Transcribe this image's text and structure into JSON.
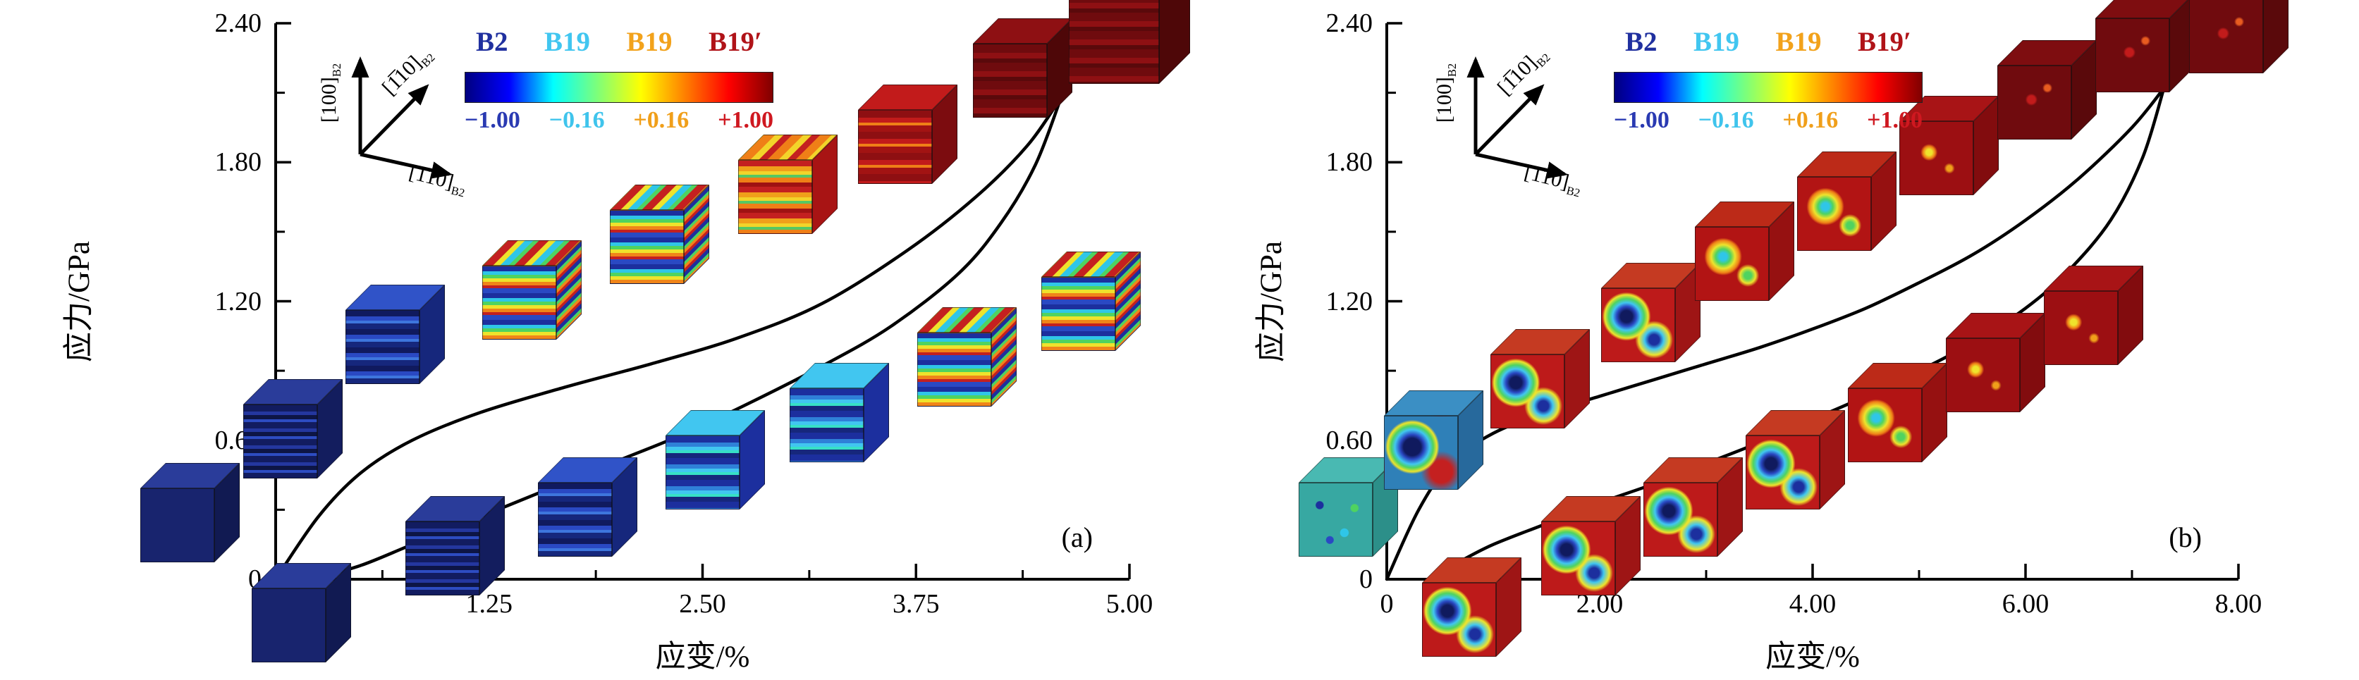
{
  "figure": {
    "background": "#ffffff"
  },
  "chart_data": [
    {
      "type": "line",
      "panel_label": "(a)",
      "xlabel": "应变/%",
      "ylabel": "应力/GPa",
      "xlim": [
        0,
        5
      ],
      "ylim": [
        0,
        2.4
      ],
      "grid": false,
      "x_ticks": [
        {
          "v": 0,
          "t": "0"
        },
        {
          "v": 1.25,
          "t": "1.25"
        },
        {
          "v": 2.5,
          "t": "2.50"
        },
        {
          "v": 3.75,
          "t": "3.75"
        },
        {
          "v": 5,
          "t": "5.00"
        }
      ],
      "y_ticks": [
        {
          "v": 0,
          "t": "0"
        },
        {
          "v": 0.6,
          "t": "0.60"
        },
        {
          "v": 1.2,
          "t": "1.20"
        },
        {
          "v": 1.8,
          "t": "1.80"
        },
        {
          "v": 2.4,
          "t": "2.40"
        }
      ],
      "curve_color": "#000000",
      "series": [
        {
          "name": "loading",
          "points": [
            [
              0,
              0
            ],
            [
              0.25,
              0.27
            ],
            [
              0.5,
              0.46
            ],
            [
              0.8,
              0.6
            ],
            [
              1.2,
              0.72
            ],
            [
              1.7,
              0.83
            ],
            [
              2.2,
              0.93
            ],
            [
              2.7,
              1.04
            ],
            [
              3.2,
              1.19
            ],
            [
              3.7,
              1.42
            ],
            [
              4.1,
              1.65
            ],
            [
              4.4,
              1.87
            ],
            [
              4.6,
              2.08
            ]
          ]
        },
        {
          "name": "unloading",
          "points": [
            [
              4.6,
              2.08
            ],
            [
              4.45,
              1.79
            ],
            [
              4.25,
              1.54
            ],
            [
              4.0,
              1.32
            ],
            [
              3.6,
              1.09
            ],
            [
              3.2,
              0.92
            ],
            [
              2.8,
              0.77
            ],
            [
              2.4,
              0.63
            ],
            [
              2.0,
              0.51
            ],
            [
              1.6,
              0.39
            ],
            [
              1.2,
              0.27
            ],
            [
              0.8,
              0.15
            ],
            [
              0.5,
              0.06
            ],
            [
              0.25,
              0.01
            ],
            [
              0.12,
              0
            ]
          ]
        }
      ],
      "legend": {
        "entries": [
          {
            "label": "B2",
            "color": "#20309f"
          },
          {
            "label": "B19",
            "color": "#41c6f0"
          },
          {
            "label": "B19",
            "color": "#f2a21b"
          },
          {
            "label": "B19′",
            "color": "#b01318"
          }
        ],
        "colorbar": {
          "gradient": [
            "#000080",
            "#0000ff",
            "#00ffff",
            "#7dff7a",
            "#ffff00",
            "#ff8000",
            "#ff0000",
            "#800000"
          ],
          "tick_labels": [
            {
              "text": "−1.00",
              "color": "#2a3ab2"
            },
            {
              "text": "−0.16",
              "color": "#3fc4ec"
            },
            {
              "text": "+0.16",
              "color": "#f09f1a"
            },
            {
              "text": "+1.00",
              "color": "#cf1820"
            }
          ]
        }
      },
      "orientation": {
        "axes": [
          {
            "label": "[100]",
            "sub": "B2"
          },
          {
            "label": "[1̅10]",
            "sub": "B2"
          },
          {
            "label": "[110]",
            "sub": "B2"
          }
        ]
      },
      "insets": [
        {
          "fx": -0.1,
          "fy": 0.12,
          "pal": "b2-solid"
        },
        {
          "fx": 0.03,
          "fy": -0.06,
          "pal": "b2-solid"
        },
        {
          "fx": 0.02,
          "fy": 0.27,
          "pal": "b2-stripes"
        },
        {
          "fx": 0.14,
          "fy": 0.44,
          "pal": "blue-stripes"
        },
        {
          "fx": 0.3,
          "fy": 0.52,
          "pal": "mixed"
        },
        {
          "fx": 0.45,
          "fy": 0.62,
          "pal": "mixed"
        },
        {
          "fx": 0.6,
          "fy": 0.71,
          "pal": "warm"
        },
        {
          "fx": 0.74,
          "fy": 0.8,
          "pal": "red-stripes"
        },
        {
          "fx": 0.875,
          "fy": 0.92,
          "pal": "dark-red"
        },
        {
          "fx": 1.0,
          "fy": 1.0,
          "pal": "dark-red",
          "scale": 1.22
        },
        {
          "fx": 0.21,
          "fy": 0.06,
          "pal": "b2-stripes"
        },
        {
          "fx": 0.365,
          "fy": 0.13,
          "pal": "blue-stripes"
        },
        {
          "fx": 0.515,
          "fy": 0.215,
          "pal": "blue-cyan"
        },
        {
          "fx": 0.66,
          "fy": 0.3,
          "pal": "blue-cyan"
        },
        {
          "fx": 0.81,
          "fy": 0.4,
          "pal": "mixed"
        },
        {
          "fx": 0.955,
          "fy": 0.5,
          "pal": "mixed"
        }
      ]
    },
    {
      "type": "line",
      "panel_label": "(b)",
      "xlabel": "应变/%",
      "ylabel": "应力/GPa",
      "xlim": [
        0,
        8
      ],
      "ylim": [
        0,
        2.4
      ],
      "grid": false,
      "x_ticks": [
        {
          "v": 0,
          "t": "0"
        },
        {
          "v": 2,
          "t": "2.00"
        },
        {
          "v": 4,
          "t": "4.00"
        },
        {
          "v": 6,
          "t": "6.00"
        },
        {
          "v": 8,
          "t": "8.00"
        }
      ],
      "y_ticks": [
        {
          "v": 0,
          "t": "0"
        },
        {
          "v": 0.6,
          "t": "0.60"
        },
        {
          "v": 1.2,
          "t": "1.20"
        },
        {
          "v": 1.8,
          "t": "1.80"
        },
        {
          "v": 2.4,
          "t": "2.40"
        }
      ],
      "curve_color": "#000000",
      "series": [
        {
          "name": "loading",
          "points": [
            [
              0,
              0
            ],
            [
              0.3,
              0.3
            ],
            [
              0.6,
              0.5
            ],
            [
              1.0,
              0.63
            ],
            [
              1.5,
              0.72
            ],
            [
              2.0,
              0.79
            ],
            [
              2.5,
              0.86
            ],
            [
              3.0,
              0.93
            ],
            [
              3.5,
              1.0
            ],
            [
              4.0,
              1.08
            ],
            [
              4.5,
              1.17
            ],
            [
              5.0,
              1.28
            ],
            [
              5.5,
              1.4
            ],
            [
              6.0,
              1.55
            ],
            [
              6.5,
              1.73
            ],
            [
              7.0,
              1.95
            ],
            [
              7.3,
              2.12
            ]
          ]
        },
        {
          "name": "unloading",
          "points": [
            [
              7.3,
              2.12
            ],
            [
              7.1,
              1.82
            ],
            [
              6.8,
              1.55
            ],
            [
              6.4,
              1.33
            ],
            [
              6.0,
              1.17
            ],
            [
              5.5,
              1.02
            ],
            [
              5.0,
              0.9
            ],
            [
              4.5,
              0.79
            ],
            [
              4.0,
              0.69
            ],
            [
              3.5,
              0.59
            ],
            [
              3.0,
              0.5
            ],
            [
              2.5,
              0.41
            ],
            [
              2.0,
              0.33
            ],
            [
              1.5,
              0.24
            ],
            [
              1.0,
              0.15
            ],
            [
              0.7,
              0.08
            ],
            [
              0.5,
              0.03
            ],
            [
              0.4,
              0
            ]
          ]
        }
      ],
      "legend": {
        "entries": [
          {
            "label": "B2",
            "color": "#20309f"
          },
          {
            "label": "B19",
            "color": "#41c6f0"
          },
          {
            "label": "B19",
            "color": "#f2a21b"
          },
          {
            "label": "B19′",
            "color": "#b01318"
          }
        ],
        "colorbar": {
          "gradient": [
            "#000080",
            "#0000ff",
            "#00ffff",
            "#7dff7a",
            "#ffff00",
            "#ff8000",
            "#ff0000",
            "#800000"
          ],
          "tick_labels": [
            {
              "text": "−1.00",
              "color": "#2a3ab2"
            },
            {
              "text": "−0.16",
              "color": "#3fc4ec"
            },
            {
              "text": "+0.16",
              "color": "#f09f1a"
            },
            {
              "text": "+1.00",
              "color": "#cf1820"
            }
          ]
        }
      },
      "orientation": {
        "axes": [
          {
            "label": "[100]",
            "sub": "B2"
          },
          {
            "label": "[1̅10]",
            "sub": "B2"
          },
          {
            "label": "[110]",
            "sub": "B2"
          }
        ]
      },
      "insets": [
        {
          "fx": -0.045,
          "fy": 0.13,
          "pal": "teal-speckle"
        },
        {
          "fx": 0.1,
          "fy": -0.05,
          "pal": "blob-mixed"
        },
        {
          "fx": 0.055,
          "fy": 0.25,
          "pal": "blob-blue-red"
        },
        {
          "fx": 0.18,
          "fy": 0.36,
          "pal": "blob-mixed"
        },
        {
          "fx": 0.31,
          "fy": 0.48,
          "pal": "blob-mixed"
        },
        {
          "fx": 0.42,
          "fy": 0.59,
          "pal": "blob-warm"
        },
        {
          "fx": 0.54,
          "fy": 0.68,
          "pal": "blob-warm"
        },
        {
          "fx": 0.66,
          "fy": 0.78,
          "pal": "blob-red"
        },
        {
          "fx": 0.775,
          "fy": 0.88,
          "pal": "dark-red-blob"
        },
        {
          "fx": 0.89,
          "fy": 0.965,
          "pal": "dark-red-blob"
        },
        {
          "fx": 1.0,
          "fy": 1.0,
          "pal": "dark-red-blob"
        },
        {
          "fx": 0.24,
          "fy": 0.06,
          "pal": "blob-mixed"
        },
        {
          "fx": 0.36,
          "fy": 0.13,
          "pal": "blob-mixed"
        },
        {
          "fx": 0.48,
          "fy": 0.215,
          "pal": "blob-mixed"
        },
        {
          "fx": 0.6,
          "fy": 0.3,
          "pal": "blob-warm"
        },
        {
          "fx": 0.715,
          "fy": 0.39,
          "pal": "blob-red"
        },
        {
          "fx": 0.83,
          "fy": 0.475,
          "pal": "blob-red"
        }
      ]
    }
  ]
}
